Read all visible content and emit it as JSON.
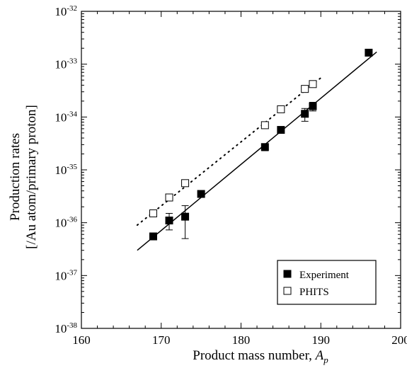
{
  "chart_data": {
    "type": "scatter",
    "xlabel": "Product mass number, ",
    "xlabel_var": "A",
    "xlabel_sub": "p",
    "ylabel_line1": "Production rates",
    "ylabel_line2": "[/Au atom/primary proton]",
    "xlim": [
      160,
      200
    ],
    "ylim_exponent": [
      -38,
      -32
    ],
    "yscale": "log",
    "x_ticks": [
      160,
      170,
      180,
      190,
      200
    ],
    "y_tick_exponents": [
      -38,
      -37,
      -36,
      -35,
      -34,
      -33,
      -32
    ],
    "y_tick_base": "10",
    "grid": false,
    "legend_position": "bottom-right",
    "series": [
      {
        "name": "Experiment",
        "marker": "filled-square",
        "color": "#000000",
        "points": [
          {
            "x": 169,
            "y": 5.5e-37
          },
          {
            "x": 171,
            "y": 1.1e-36,
            "err_low": 7.3e-37,
            "err_high": 1.5e-36
          },
          {
            "x": 173,
            "y": 1.3e-36,
            "err_low": 5e-37,
            "err_high": 2.1e-36
          },
          {
            "x": 175,
            "y": 3.5e-36
          },
          {
            "x": 183,
            "y": 2.7e-35,
            "err_low": 2.3e-35,
            "err_high": 3.1e-35
          },
          {
            "x": 185,
            "y": 5.7e-35
          },
          {
            "x": 188,
            "y": 1.15e-34,
            "err_low": 8.3e-35,
            "err_high": 1.45e-34
          },
          {
            "x": 189,
            "y": 1.6e-34,
            "err_low": 1.3e-34,
            "err_high": 1.9e-34
          },
          {
            "x": 196,
            "y": 1.65e-33
          }
        ],
        "fit_line": {
          "style": "solid",
          "x": [
            167,
            197
          ],
          "y": [
            3e-37,
            1.7e-33
          ]
        }
      },
      {
        "name": "PHITS",
        "marker": "open-square",
        "color": "#000000",
        "points": [
          {
            "x": 169,
            "y": 1.5e-36
          },
          {
            "x": 171,
            "y": 3e-36
          },
          {
            "x": 173,
            "y": 5.6e-36
          },
          {
            "x": 183,
            "y": 7e-35
          },
          {
            "x": 185,
            "y": 1.4e-34
          },
          {
            "x": 188,
            "y": 3.4e-34
          },
          {
            "x": 189,
            "y": 4.2e-34
          }
        ],
        "fit_line": {
          "style": "dotted",
          "x": [
            167,
            190
          ],
          "y": [
            9e-37,
            5.5e-34
          ]
        }
      }
    ]
  }
}
